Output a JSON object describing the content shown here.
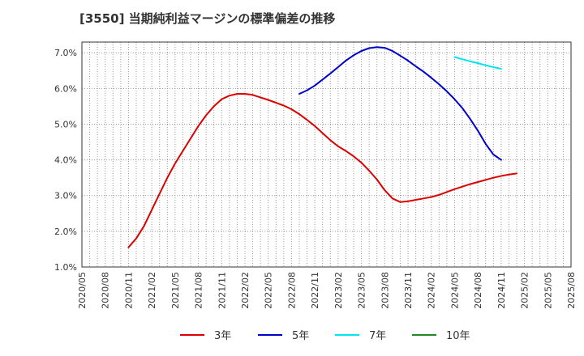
{
  "chart_data": {
    "type": "line",
    "title": "[3550]  当期純利益マージンの標準偏差の推移",
    "xlabel": "",
    "ylabel": "",
    "ylim": [
      1.0,
      7.3
    ],
    "yticks": [
      1.0,
      2.0,
      3.0,
      4.0,
      5.0,
      6.0,
      7.0
    ],
    "ytick_labels": [
      "1.0%",
      "2.0%",
      "3.0%",
      "4.0%",
      "5.0%",
      "6.0%",
      "7.0%"
    ],
    "xtick_labels": [
      "2020/05",
      "2020/08",
      "2020/11",
      "2021/02",
      "2021/05",
      "2021/08",
      "2021/11",
      "2022/02",
      "2022/05",
      "2022/08",
      "2022/11",
      "2023/02",
      "2023/05",
      "2023/08",
      "2023/11",
      "2024/02",
      "2024/05",
      "2024/08",
      "2024/11",
      "2025/02",
      "2025/05",
      "2025/08"
    ],
    "grid": true,
    "legend_position": "bottom",
    "series": [
      {
        "name": "3年",
        "color": "#dd0000",
        "points": [
          [
            "2020/11",
            1.55
          ],
          [
            "2020/12",
            1.8
          ],
          [
            "2021/01",
            2.15
          ],
          [
            "2021/02",
            2.6
          ],
          [
            "2021/03",
            3.05
          ],
          [
            "2021/04",
            3.5
          ],
          [
            "2021/05",
            3.9
          ],
          [
            "2021/06",
            4.25
          ],
          [
            "2021/07",
            4.6
          ],
          [
            "2021/08",
            4.95
          ],
          [
            "2021/09",
            5.25
          ],
          [
            "2021/10",
            5.5
          ],
          [
            "2021/11",
            5.7
          ],
          [
            "2021/12",
            5.8
          ],
          [
            "2022/01",
            5.85
          ],
          [
            "2022/02",
            5.85
          ],
          [
            "2022/03",
            5.82
          ],
          [
            "2022/04",
            5.75
          ],
          [
            "2022/05",
            5.68
          ],
          [
            "2022/06",
            5.6
          ],
          [
            "2022/07",
            5.52
          ],
          [
            "2022/08",
            5.42
          ],
          [
            "2022/09",
            5.28
          ],
          [
            "2022/10",
            5.12
          ],
          [
            "2022/11",
            4.95
          ],
          [
            "2022/12",
            4.75
          ],
          [
            "2023/01",
            4.55
          ],
          [
            "2023/02",
            4.38
          ],
          [
            "2023/03",
            4.25
          ],
          [
            "2023/04",
            4.1
          ],
          [
            "2023/05",
            3.92
          ],
          [
            "2023/06",
            3.7
          ],
          [
            "2023/07",
            3.45
          ],
          [
            "2023/08",
            3.15
          ],
          [
            "2023/09",
            2.92
          ],
          [
            "2023/10",
            2.82
          ],
          [
            "2023/11",
            2.84
          ],
          [
            "2023/12",
            2.88
          ],
          [
            "2024/01",
            2.92
          ],
          [
            "2024/02",
            2.96
          ],
          [
            "2024/03",
            3.02
          ],
          [
            "2024/04",
            3.1
          ],
          [
            "2024/05",
            3.18
          ],
          [
            "2024/06",
            3.25
          ],
          [
            "2024/07",
            3.32
          ],
          [
            "2024/08",
            3.38
          ],
          [
            "2024/09",
            3.44
          ],
          [
            "2024/10",
            3.5
          ],
          [
            "2024/11",
            3.55
          ],
          [
            "2024/12",
            3.59
          ],
          [
            "2025/01",
            3.62
          ]
        ]
      },
      {
        "name": "5年",
        "color": "#0000cc",
        "points": [
          [
            "2022/09",
            5.85
          ],
          [
            "2022/10",
            5.95
          ],
          [
            "2022/11",
            6.08
          ],
          [
            "2022/12",
            6.25
          ],
          [
            "2023/01",
            6.42
          ],
          [
            "2023/02",
            6.6
          ],
          [
            "2023/03",
            6.78
          ],
          [
            "2023/04",
            6.93
          ],
          [
            "2023/05",
            7.05
          ],
          [
            "2023/06",
            7.13
          ],
          [
            "2023/07",
            7.16
          ],
          [
            "2023/08",
            7.14
          ],
          [
            "2023/09",
            7.05
          ],
          [
            "2023/10",
            6.92
          ],
          [
            "2023/11",
            6.78
          ],
          [
            "2023/12",
            6.62
          ],
          [
            "2024/01",
            6.47
          ],
          [
            "2024/02",
            6.3
          ],
          [
            "2024/03",
            6.12
          ],
          [
            "2024/04",
            5.92
          ],
          [
            "2024/05",
            5.7
          ],
          [
            "2024/06",
            5.45
          ],
          [
            "2024/07",
            5.15
          ],
          [
            "2024/08",
            4.82
          ],
          [
            "2024/09",
            4.45
          ],
          [
            "2024/10",
            4.15
          ],
          [
            "2024/11",
            4.0
          ]
        ]
      },
      {
        "name": "7年",
        "color": "#00e5ee",
        "points": [
          [
            "2024/05",
            6.88
          ],
          [
            "2024/06",
            6.82
          ],
          [
            "2024/07",
            6.76
          ],
          [
            "2024/08",
            6.71
          ],
          [
            "2024/09",
            6.65
          ],
          [
            "2024/10",
            6.6
          ],
          [
            "2024/11",
            6.55
          ]
        ]
      },
      {
        "name": "10年",
        "color": "#228822",
        "points": []
      }
    ]
  }
}
